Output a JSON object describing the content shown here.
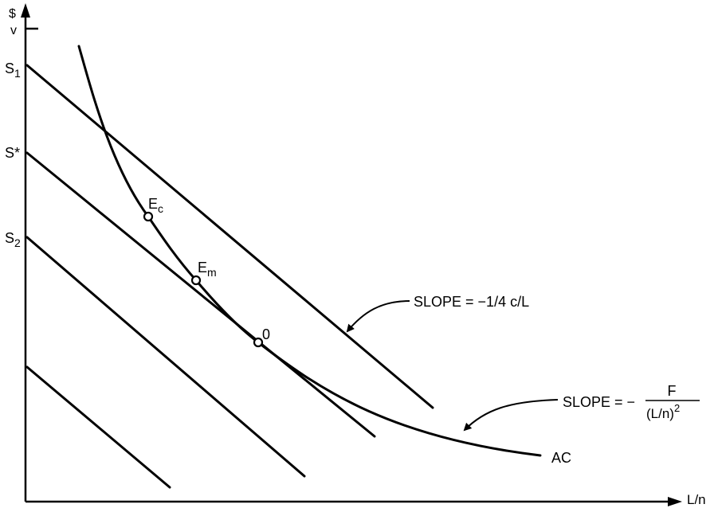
{
  "axes": {
    "y_unit": "$",
    "y_tick_label": "v",
    "x_label": "L/n"
  },
  "intercepts": {
    "s1": {
      "base": "S",
      "sub": "1"
    },
    "sstar": "S*",
    "s2": {
      "base": "S",
      "sub": "2"
    }
  },
  "points": {
    "ec": {
      "base": "E",
      "sub": "c"
    },
    "em": {
      "base": "E",
      "sub": "m"
    },
    "origin": "0"
  },
  "curve_label": "AC",
  "annotations": {
    "slope1": "SLOPE = −1/4 c/L",
    "slope2_prefix": "SLOPE = −",
    "slope2_num": "F",
    "slope2_den": "(L/n)",
    "slope2_exp": "2"
  }
}
